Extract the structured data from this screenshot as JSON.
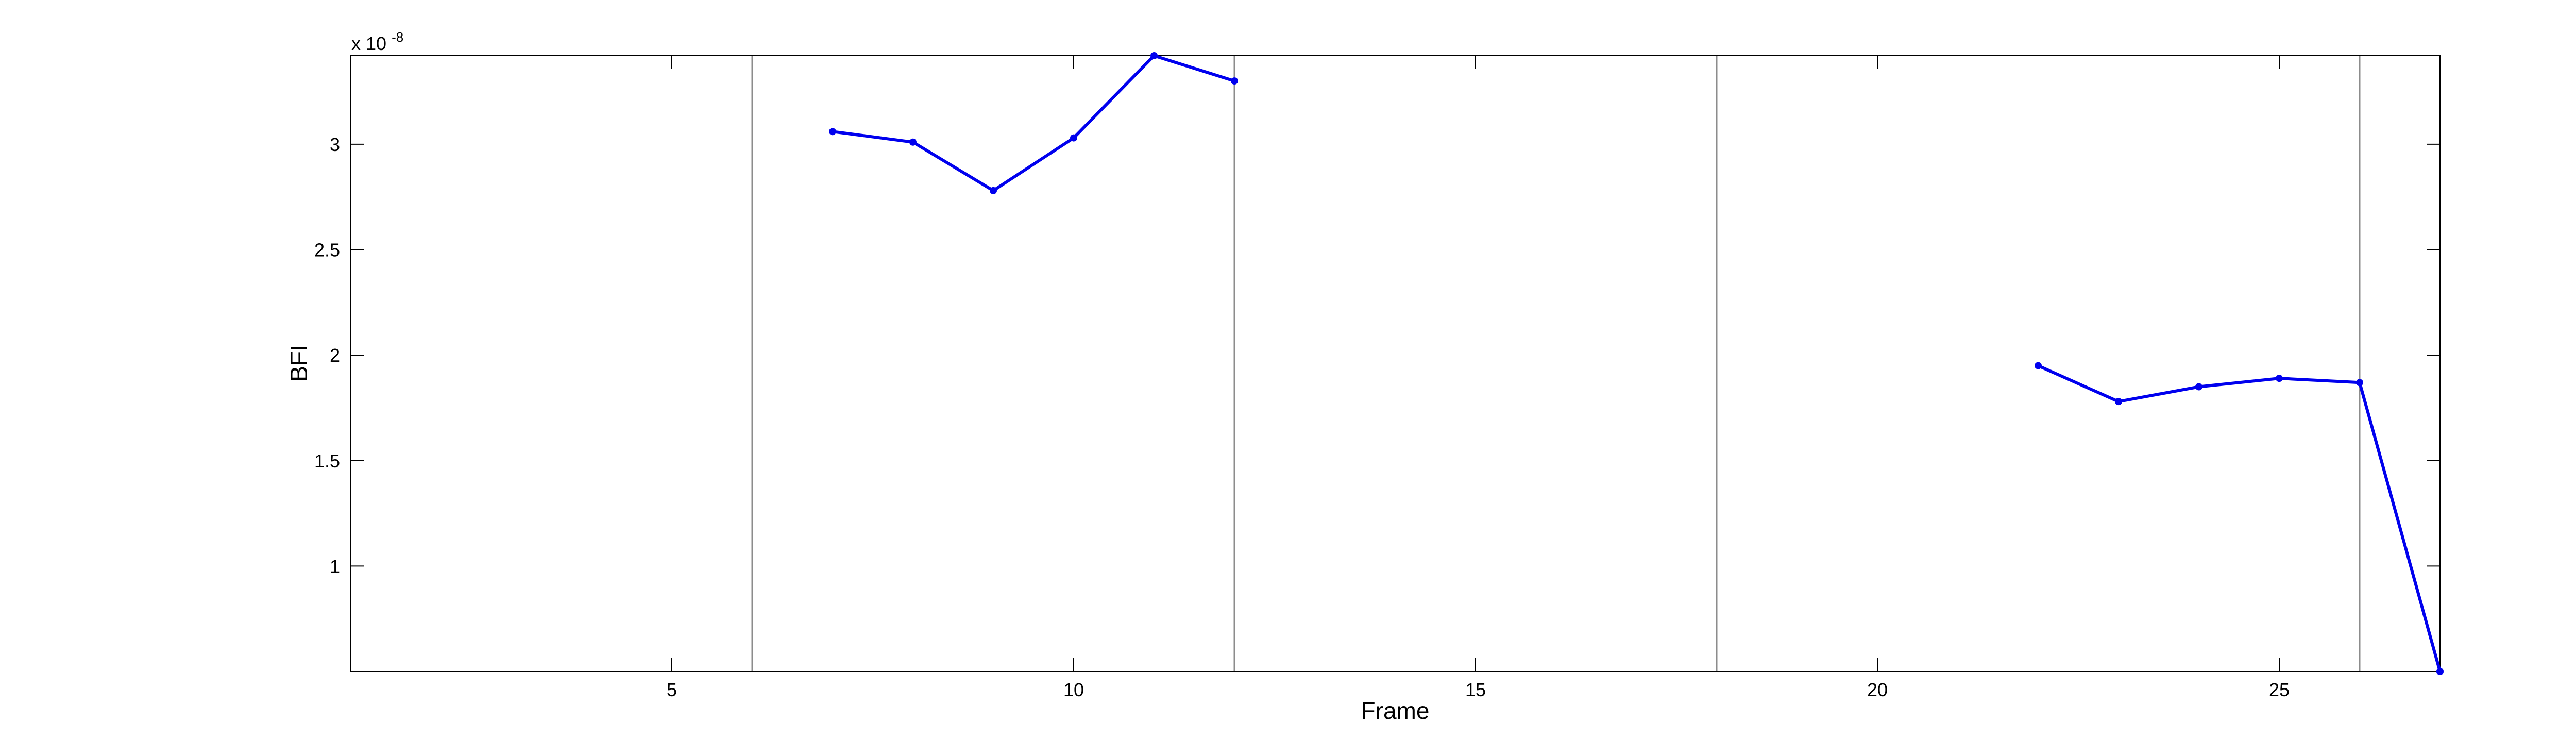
{
  "chart_data": {
    "type": "line",
    "title": "",
    "xlabel": "Frame",
    "ylabel": "BFI",
    "exponent_label": {
      "base": "x 10",
      "exp": "-8"
    },
    "xlim": [
      1,
      27
    ],
    "ylim": [
      0.5,
      3.42
    ],
    "xticks": [
      5,
      10,
      15,
      20,
      25
    ],
    "yticks": [
      1,
      1.5,
      2,
      2.5,
      3
    ],
    "ytick_labels": [
      "1",
      "1.5",
      "2",
      "2.5",
      "3"
    ],
    "vertical_lines": [
      6,
      12,
      18,
      26
    ],
    "grid": false,
    "series_color": "#0000ee",
    "segments": [
      [
        [
          7,
          3.06
        ],
        [
          8,
          3.01
        ],
        [
          9,
          2.78
        ],
        [
          10,
          3.03
        ],
        [
          11,
          3.42
        ],
        [
          12,
          3.3
        ]
      ],
      [
        [
          22,
          1.95
        ],
        [
          23,
          1.78
        ],
        [
          24,
          1.85
        ],
        [
          25,
          1.89
        ],
        [
          26,
          1.87
        ],
        [
          27,
          0.5
        ]
      ]
    ]
  }
}
